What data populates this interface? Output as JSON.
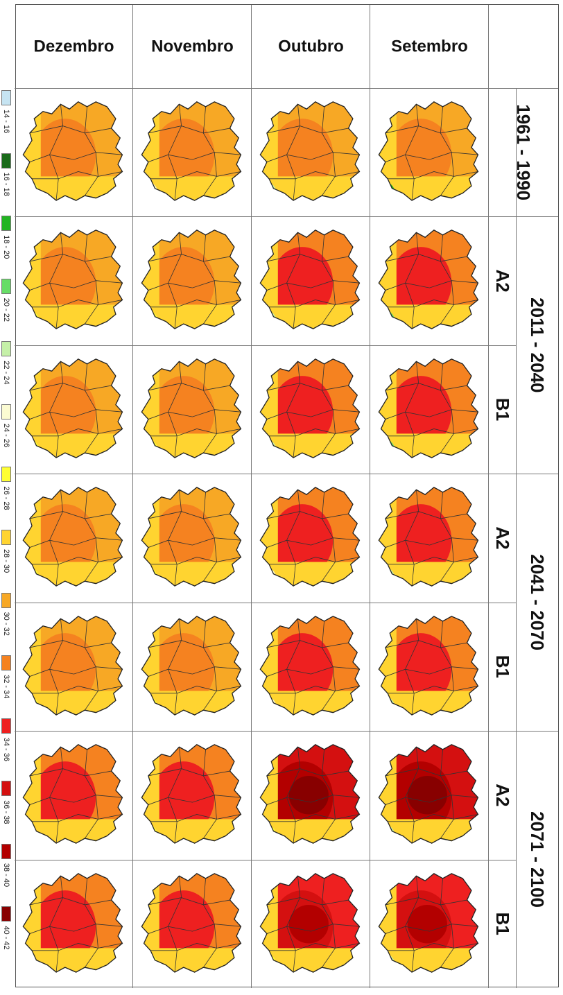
{
  "periods": [
    "1961 - 1990",
    "2011 - 2040",
    "2041 - 2070",
    "2071 - 2100"
  ],
  "scenarios": [
    "A2",
    "B1"
  ],
  "months": [
    "Setembro",
    "Outubro",
    "Novembro",
    "Dezembro"
  ],
  "legend": [
    {
      "label": "14 - 16",
      "color": "#c6e4f2"
    },
    {
      "label": "16 - 18",
      "color": "#1a6b1a"
    },
    {
      "label": "18 - 20",
      "color": "#22b422"
    },
    {
      "label": "20 - 22",
      "color": "#66dd66"
    },
    {
      "label": "22 - 24",
      "color": "#c5f0a8"
    },
    {
      "label": "24 - 26",
      "color": "#fbfbd2"
    },
    {
      "label": "26 - 28",
      "color": "#ffff33"
    },
    {
      "label": "28 - 30",
      "color": "#ffd430"
    },
    {
      "label": "30 - 32",
      "color": "#f7a825"
    },
    {
      "label": "32 - 34",
      "color": "#f58220"
    },
    {
      "label": "34 - 36",
      "color": "#ee2020"
    },
    {
      "label": "36 - 38",
      "color": "#d41010"
    },
    {
      "label": "38 - 40",
      "color": "#b30000"
    },
    {
      "label": "40 - 42",
      "color": "#880000"
    }
  ]
}
